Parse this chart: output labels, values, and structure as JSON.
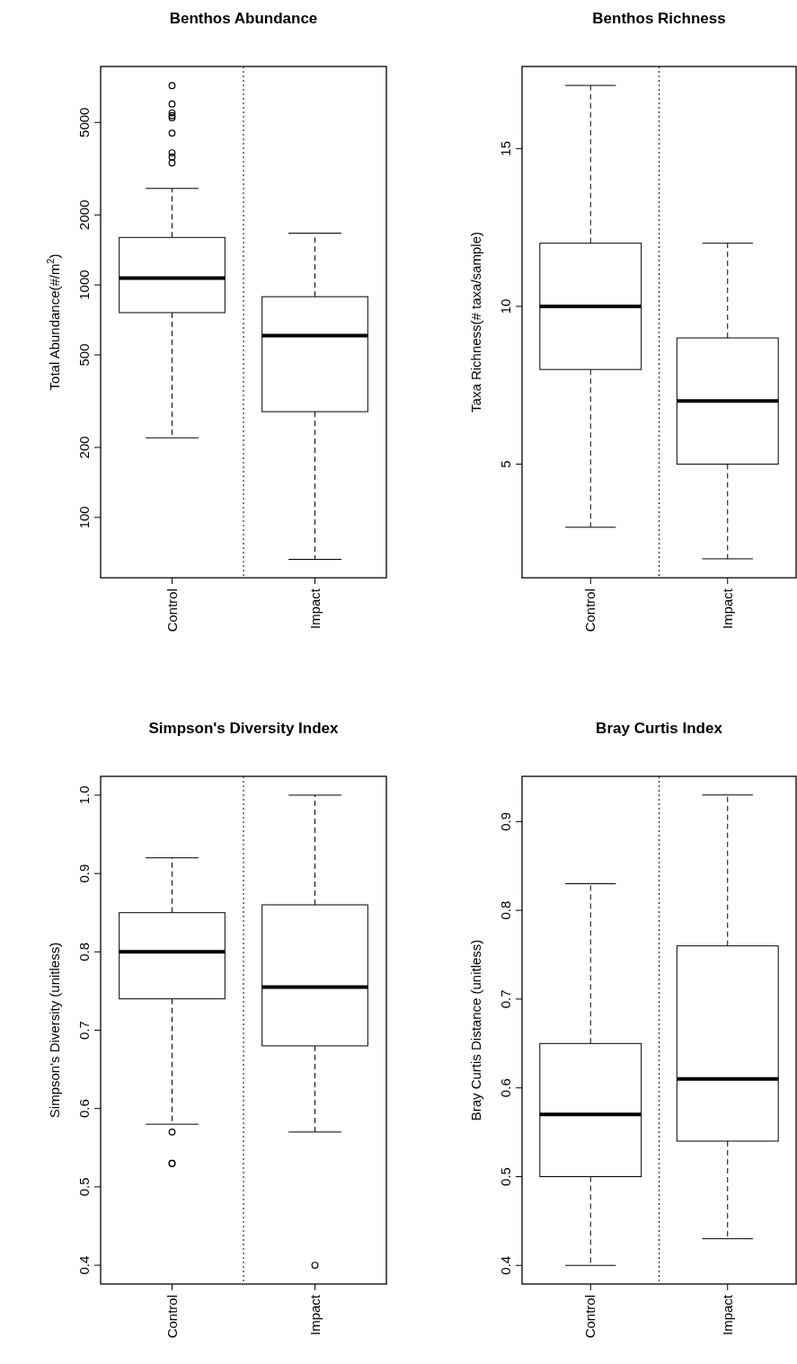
{
  "chart_data": [
    {
      "type": "box",
      "title": "Benthos Abundance",
      "ylabel": "Total Abundance(#/m$^{2}$)",
      "categories": [
        "Control",
        "Impact"
      ],
      "log": true,
      "ylim": [
        55,
        8700
      ],
      "yticks": [
        100,
        200,
        500,
        1000,
        2000,
        5000
      ],
      "boxes": [
        {
          "low": 220,
          "q1": 760,
          "median": 1070,
          "q3": 1600,
          "high": 2600,
          "outliers": [
            7200,
            6000,
            5500,
            5350,
            5240,
            4500,
            3700,
            3550,
            3350
          ]
        },
        {
          "low": 66,
          "q1": 285,
          "median": 605,
          "q3": 890,
          "high": 1670
        }
      ]
    },
    {
      "type": "box",
      "title": "Benthos Richness",
      "ylabel": "Taxa Richness(# taxa/sample)",
      "categories": [
        "Control",
        "Impact"
      ],
      "ylim": [
        1.4,
        17.6
      ],
      "yticks": [
        5,
        10,
        15
      ],
      "boxes": [
        {
          "low": 3,
          "q1": 8,
          "median": 10,
          "q3": 12,
          "high": 17
        },
        {
          "low": 2,
          "q1": 5,
          "median": 7,
          "q3": 9,
          "high": 12
        }
      ]
    },
    {
      "type": "box",
      "title": "Simpson's Diversity Index",
      "ylabel": "Simpson's Diversity (unitless)",
      "categories": [
        "Control",
        "Impact"
      ],
      "ylim": [
        0.376,
        1.024
      ],
      "yticks": [
        0.4,
        0.5,
        0.6,
        0.7,
        0.8,
        0.9,
        {
          "value": 1,
          "label": "1.0"
        }
      ],
      "boxes": [
        {
          "low": 0.58,
          "q1": 0.74,
          "median": 0.8,
          "q3": 0.85,
          "high": 0.92,
          "outliers": [
            0.57,
            0.53,
            0.53
          ]
        },
        {
          "low": 0.57,
          "q1": 0.68,
          "median": 0.755,
          "q3": 0.86,
          "high": 1.0,
          "outliers": [
            0.4
          ]
        }
      ]
    },
    {
      "type": "box",
      "title": "Bray Curtis Index",
      "ylabel": "Bray Curtis Distance (unitless)",
      "categories": [
        "Control",
        "Impact"
      ],
      "ylim": [
        0.379,
        0.951
      ],
      "yticks": [
        0.4,
        0.5,
        0.6,
        0.7,
        0.8,
        0.9
      ],
      "boxes": [
        {
          "low": 0.4,
          "q1": 0.5,
          "median": 0.57,
          "q3": 0.65,
          "high": 0.83
        },
        {
          "low": 0.43,
          "q1": 0.54,
          "median": 0.61,
          "q3": 0.76,
          "high": 0.93
        }
      ]
    }
  ]
}
